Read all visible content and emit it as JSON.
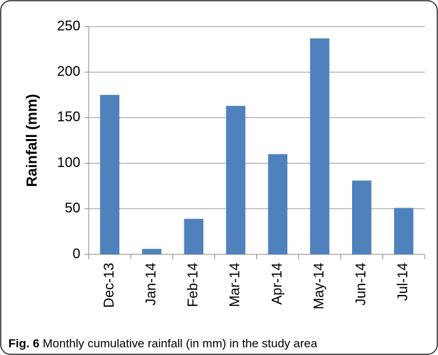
{
  "chart_data": {
    "type": "bar",
    "y_label": "Rainfall (mm)",
    "categories": [
      "Dec-13",
      "Jan-14",
      "Feb-14",
      "Mar-14",
      "Apr-14",
      "May-14",
      "Jun-14",
      "Jul-14"
    ],
    "values": [
      175,
      6,
      39,
      163,
      110,
      237,
      81,
      51
    ],
    "color": "#4f81bd",
    "ylim": [
      0,
      250
    ],
    "yticks": [
      0,
      50,
      100,
      150,
      200,
      250
    ],
    "grid": true,
    "caption_label": "Fig. 6",
    "caption": "Monthly cumulative rainfall (in mm) in the study area"
  }
}
